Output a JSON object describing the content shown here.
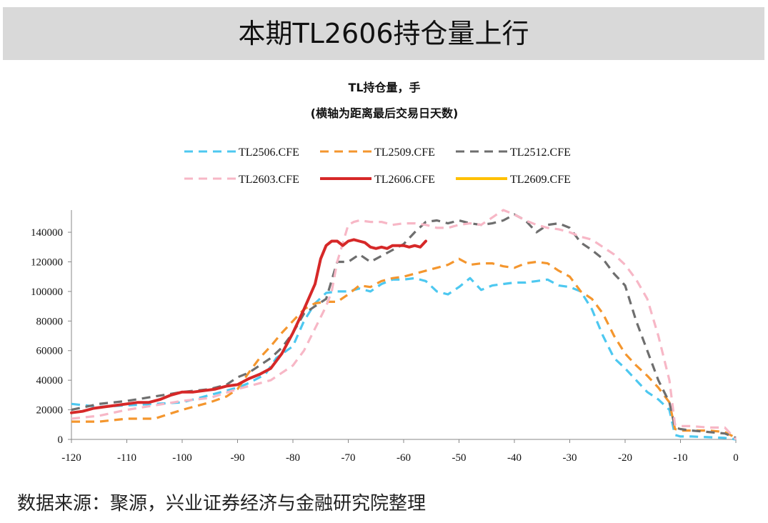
{
  "header": {
    "title": "本期TL2606持仓量上行"
  },
  "source_note": "数据来源：聚源，兴业证券经济与金融研究院整理",
  "chart_data": {
    "type": "line",
    "title": "TL持仓量，手",
    "subtitle": "(横轴为距离最后交易日天数)",
    "xlabel": "",
    "ylabel": "",
    "xlim": [
      -120,
      0
    ],
    "ylim": [
      0,
      155000
    ],
    "x_ticks": [
      -120,
      -110,
      -100,
      -90,
      -80,
      -70,
      -60,
      -50,
      -40,
      -30,
      -20,
      -10,
      0
    ],
    "y_ticks": [
      0,
      20000,
      40000,
      60000,
      80000,
      100000,
      120000,
      140000
    ],
    "legend_position": "top",
    "grid": false,
    "series": [
      {
        "name": "TL2506.CFE",
        "color": "#4dc8f0",
        "dash": "dashed",
        "x": [
          -120,
          -115,
          -110,
          -105,
          -100,
          -95,
          -92,
          -90,
          -88,
          -85,
          -83,
          -80,
          -78,
          -76,
          -74,
          -72,
          -70,
          -68,
          -66,
          -64,
          -62,
          -60,
          -58,
          -56,
          -54,
          -52,
          -50,
          -48,
          -46,
          -44,
          -42,
          -40,
          -38,
          -36,
          -34,
          -32,
          -30,
          -28,
          -26,
          -24,
          -22,
          -20,
          -18,
          -16,
          -14,
          -12,
          -11,
          -10,
          -8,
          -5,
          -2,
          0
        ],
        "y": [
          24000,
          22000,
          23000,
          24000,
          25000,
          30000,
          33000,
          35000,
          38000,
          44000,
          55000,
          63000,
          80000,
          92000,
          99000,
          100000,
          100000,
          102000,
          100000,
          105000,
          108000,
          108000,
          109000,
          107000,
          100000,
          98000,
          103000,
          109000,
          101000,
          104000,
          105000,
          106000,
          106000,
          107000,
          108000,
          104000,
          103000,
          100000,
          88000,
          70000,
          55000,
          48000,
          40000,
          32000,
          27000,
          20000,
          3000,
          2000,
          2000,
          1500,
          1000,
          0
        ]
      },
      {
        "name": "TL2509.CFE",
        "color": "#f4962e",
        "dash": "dashed",
        "x": [
          -120,
          -115,
          -110,
          -105,
          -100,
          -95,
          -92,
          -90,
          -88,
          -86,
          -84,
          -82,
          -80,
          -78,
          -76,
          -74,
          -72,
          -70,
          -68,
          -66,
          -64,
          -62,
          -60,
          -58,
          -56,
          -54,
          -52,
          -50,
          -48,
          -46,
          -44,
          -42,
          -40,
          -38,
          -36,
          -34,
          -32,
          -30,
          -28,
          -26,
          -24,
          -22,
          -20,
          -18,
          -16,
          -14,
          -12,
          -11,
          -10,
          -8,
          -5,
          -2,
          0
        ],
        "y": [
          12000,
          12000,
          14000,
          14000,
          20000,
          25000,
          29000,
          34000,
          45000,
          55000,
          63000,
          72000,
          80000,
          88000,
          92000,
          93000,
          93000,
          98000,
          104000,
          103000,
          107000,
          109000,
          110000,
          112000,
          114000,
          116000,
          118000,
          122000,
          118000,
          119000,
          119000,
          117000,
          116000,
          119000,
          120000,
          119000,
          114000,
          110000,
          100000,
          95000,
          85000,
          70000,
          58000,
          50000,
          43000,
          35000,
          25000,
          7000,
          6000,
          6000,
          6000,
          5000,
          1000
        ]
      },
      {
        "name": "TL2512.CFE",
        "color": "#6e6e6e",
        "dash": "dashed",
        "x": [
          -120,
          -115,
          -110,
          -105,
          -100,
          -95,
          -92,
          -90,
          -88,
          -86,
          -84,
          -82,
          -80,
          -78,
          -76,
          -74,
          -72,
          -70,
          -68,
          -66,
          -64,
          -62,
          -60,
          -58,
          -56,
          -54,
          -52,
          -50,
          -48,
          -46,
          -44,
          -42,
          -40,
          -38,
          -36,
          -34,
          -32,
          -30,
          -28,
          -26,
          -24,
          -22,
          -20,
          -18,
          -16,
          -14,
          -12,
          -11,
          -10,
          -8,
          -5,
          -2,
          0
        ],
        "y": [
          20000,
          24000,
          26000,
          29000,
          32000,
          34000,
          37000,
          42000,
          45000,
          50000,
          55000,
          62000,
          72000,
          85000,
          90000,
          95000,
          120000,
          120000,
          125000,
          120000,
          124000,
          128000,
          132000,
          140000,
          147000,
          148000,
          146000,
          148000,
          146000,
          145000,
          146000,
          148000,
          152000,
          148000,
          140000,
          145000,
          146000,
          143000,
          133000,
          128000,
          122000,
          112000,
          104000,
          80000,
          60000,
          40000,
          25000,
          8000,
          7000,
          6000,
          5000,
          4000,
          1000
        ]
      },
      {
        "name": "TL2603.CFE",
        "color": "#f7b7c6",
        "dash": "dashed",
        "x": [
          -120,
          -115,
          -110,
          -105,
          -100,
          -95,
          -90,
          -87,
          -84,
          -82,
          -80,
          -78,
          -76,
          -74,
          -73,
          -72,
          -70,
          -69,
          -68,
          -66,
          -64,
          -62,
          -60,
          -58,
          -56,
          -54,
          -52,
          -50,
          -48,
          -46,
          -44,
          -42,
          -40,
          -38,
          -36,
          -34,
          -32,
          -30,
          -28,
          -26,
          -24,
          -22,
          -20,
          -18,
          -16,
          -14,
          -12,
          -11,
          -10,
          -8,
          -5,
          -2,
          0
        ],
        "y": [
          14000,
          16000,
          20000,
          23000,
          26000,
          28000,
          34000,
          37000,
          40000,
          45000,
          50000,
          60000,
          75000,
          90000,
          100000,
          120000,
          145000,
          147000,
          148000,
          147000,
          147000,
          145000,
          146000,
          146000,
          145000,
          143000,
          143000,
          145000,
          146000,
          145000,
          150000,
          155000,
          152000,
          148000,
          145000,
          143000,
          142000,
          140000,
          137000,
          135000,
          130000,
          125000,
          118000,
          108000,
          95000,
          70000,
          40000,
          10000,
          9000,
          9000,
          8000,
          8000,
          0
        ]
      },
      {
        "name": "TL2606.CFE",
        "color": "#d62828",
        "dash": "solid",
        "x": [
          -120,
          -118,
          -116,
          -114,
          -112,
          -110,
          -108,
          -106,
          -104,
          -102,
          -100,
          -98,
          -96,
          -94,
          -92,
          -90,
          -88,
          -86,
          -84,
          -82,
          -80,
          -78,
          -76,
          -75,
          -74,
          -73,
          -72,
          -71,
          -70,
          -69,
          -68,
          -67,
          -66,
          -65,
          -64,
          -63,
          -62,
          -61,
          -60,
          -59,
          -58,
          -57,
          -56
        ],
        "y": [
          18000,
          19000,
          21000,
          22000,
          23000,
          24000,
          25000,
          25000,
          27000,
          30000,
          32000,
          32000,
          33000,
          34000,
          36000,
          37000,
          41000,
          44000,
          48000,
          58000,
          72000,
          88000,
          105000,
          122000,
          131000,
          134000,
          134000,
          131000,
          134000,
          135000,
          134000,
          133000,
          130000,
          129000,
          130000,
          129000,
          131000,
          131000,
          131000,
          130000,
          131000,
          130000,
          134000
        ]
      },
      {
        "name": "TL2609.CFE",
        "color": "#ffc000",
        "dash": "solid",
        "x": [],
        "y": []
      }
    ]
  }
}
